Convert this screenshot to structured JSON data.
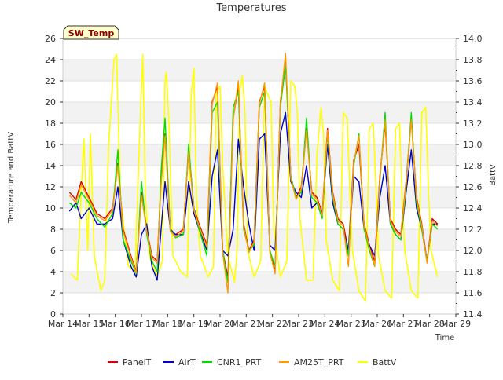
{
  "chart_data": {
    "type": "line",
    "title": "Temperatures",
    "badge": "SW_Temp",
    "xlabel": "Time",
    "ylabel_left": "Temperature and BattV",
    "ylabel_right": "BattV",
    "xlim": [
      0,
      15
    ],
    "ylim_left": [
      0,
      26
    ],
    "ylim_right": [
      11.4,
      14.0
    ],
    "x_ticks": [
      0,
      1,
      2,
      3,
      4,
      5,
      6,
      7,
      8,
      9,
      10,
      11,
      12,
      13,
      14,
      15
    ],
    "x_tick_labels": [
      "Mar 14",
      "Mar 15",
      "Mar 16",
      "Mar 17",
      "Mar 18",
      "Mar 19",
      "Mar 20",
      "Mar 21",
      "Mar 22",
      "Mar 23",
      "Mar 24",
      "Mar 25",
      "Mar 26",
      "Mar 27",
      "Mar 28",
      "Mar 29"
    ],
    "y_ticks_left": [
      0,
      2,
      4,
      6,
      8,
      10,
      12,
      14,
      16,
      18,
      20,
      22,
      24,
      26
    ],
    "y_ticks_right": [
      "11.4",
      "11.6",
      "11.8",
      "12.0",
      "12.2",
      "12.4",
      "12.6",
      "12.8",
      "13.0",
      "13.2",
      "13.4",
      "13.6",
      "13.8",
      "14.0"
    ],
    "grid": "horizontal bands",
    "legend_position": "bottom",
    "series": [
      {
        "name": "PanelT",
        "color": "#dd0000",
        "axis": "left",
        "x": [
          0.25,
          0.5,
          0.7,
          1.0,
          1.3,
          1.6,
          1.9,
          2.1,
          2.3,
          2.6,
          2.8,
          3.0,
          3.2,
          3.4,
          3.6,
          3.75,
          3.9,
          4.1,
          4.3,
          4.6,
          4.8,
          5.0,
          5.2,
          5.5,
          5.7,
          5.9,
          6.1,
          6.3,
          6.5,
          6.7,
          6.9,
          7.1,
          7.3,
          7.5,
          7.7,
          7.9,
          8.1,
          8.3,
          8.5,
          8.7,
          8.9,
          9.1,
          9.3,
          9.5,
          9.7,
          9.9,
          10.1,
          10.3,
          10.5,
          10.7,
          10.9,
          11.1,
          11.3,
          11.5,
          11.7,
          11.9,
          12.1,
          12.3,
          12.5,
          12.7,
          12.9,
          13.1,
          13.3,
          13.5,
          13.7,
          13.9,
          14.1,
          14.3
        ],
        "values": [
          11.5,
          10.8,
          12.5,
          11.0,
          9.5,
          9.0,
          10.0,
          14.2,
          8.0,
          5.5,
          4.0,
          11.5,
          8.0,
          5.5,
          5.0,
          12.5,
          17.0,
          8.0,
          7.5,
          8.0,
          15.5,
          10.0,
          8.5,
          6.5,
          20.0,
          21.5,
          6.0,
          3.5,
          18.5,
          21.5,
          8.5,
          6.0,
          7.0,
          20.0,
          21.5,
          6.0,
          4.0,
          20.0,
          24.0,
          13.0,
          11.0,
          12.0,
          17.5,
          11.5,
          11.0,
          9.5,
          17.5,
          11.5,
          9.0,
          8.5,
          6.0,
          14.5,
          16.0,
          8.5,
          6.5,
          5.0,
          13.0,
          18.0,
          9.0,
          8.0,
          7.5,
          12.5,
          18.5,
          11.0,
          8.5,
          5.0,
          9.0,
          8.5
        ]
      },
      {
        "name": "AirT",
        "color": "#0000cc",
        "axis": "left",
        "x": [
          0.25,
          0.5,
          0.7,
          1.0,
          1.3,
          1.6,
          1.9,
          2.1,
          2.3,
          2.6,
          2.8,
          3.0,
          3.2,
          3.4,
          3.6,
          3.75,
          3.9,
          4.1,
          4.3,
          4.6,
          4.8,
          5.0,
          5.2,
          5.5,
          5.7,
          5.9,
          6.1,
          6.3,
          6.5,
          6.7,
          6.9,
          7.1,
          7.3,
          7.5,
          7.7,
          7.9,
          8.1,
          8.3,
          8.5,
          8.7,
          8.9,
          9.1,
          9.3,
          9.5,
          9.7,
          9.9,
          10.1,
          10.3,
          10.5,
          10.7,
          10.9,
          11.1,
          11.3,
          11.5,
          11.7,
          11.9,
          12.1,
          12.3,
          12.5,
          12.7,
          12.9,
          13.1,
          13.3,
          13.5,
          13.7,
          13.9,
          14.1,
          14.3
        ],
        "values": [
          9.7,
          10.5,
          9.0,
          10.0,
          8.5,
          8.5,
          9.0,
          12.0,
          7.0,
          4.5,
          3.5,
          7.5,
          8.5,
          4.5,
          3.2,
          8.0,
          12.5,
          8.0,
          7.5,
          7.5,
          12.5,
          9.5,
          8.0,
          6.0,
          13.0,
          15.5,
          6.0,
          5.5,
          8.0,
          16.5,
          12.0,
          8.5,
          6.0,
          16.5,
          17.0,
          6.5,
          6.0,
          17.0,
          19.0,
          12.5,
          11.5,
          11.0,
          14.0,
          10.0,
          10.5,
          9.5,
          16.0,
          10.5,
          8.5,
          8.0,
          6.0,
          13.0,
          12.5,
          8.0,
          6.5,
          5.5,
          11.0,
          14.0,
          8.5,
          7.5,
          7.0,
          11.5,
          15.5,
          10.0,
          8.0,
          5.0,
          8.5,
          8.5
        ]
      },
      {
        "name": "CNR1_PRT",
        "color": "#00dd00",
        "axis": "left",
        "x": [
          0.25,
          0.5,
          0.7,
          1.0,
          1.3,
          1.6,
          1.9,
          2.1,
          2.3,
          2.6,
          2.8,
          3.0,
          3.2,
          3.4,
          3.6,
          3.75,
          3.9,
          4.1,
          4.3,
          4.6,
          4.8,
          5.0,
          5.2,
          5.5,
          5.7,
          5.9,
          6.1,
          6.3,
          6.5,
          6.7,
          6.9,
          7.1,
          7.3,
          7.5,
          7.7,
          7.9,
          8.1,
          8.3,
          8.5,
          8.7,
          8.9,
          9.1,
          9.3,
          9.5,
          9.7,
          9.9,
          10.1,
          10.3,
          10.5,
          10.7,
          10.9,
          11.1,
          11.3,
          11.5,
          11.7,
          11.9,
          12.1,
          12.3,
          12.5,
          12.7,
          12.9,
          13.1,
          13.3,
          13.5,
          13.7,
          13.9,
          14.1,
          14.3
        ],
        "values": [
          10.5,
          10.0,
          11.5,
          10.5,
          9.0,
          8.2,
          9.5,
          15.5,
          7.0,
          5.0,
          3.8,
          12.5,
          7.5,
          5.0,
          4.0,
          13.5,
          18.5,
          8.0,
          7.2,
          7.5,
          16.0,
          10.0,
          8.0,
          5.5,
          19.0,
          20.0,
          6.0,
          3.0,
          19.5,
          21.0,
          8.0,
          6.0,
          6.5,
          19.5,
          21.0,
          6.0,
          4.5,
          19.5,
          23.5,
          13.0,
          11.0,
          11.5,
          18.5,
          11.0,
          10.5,
          9.0,
          17.0,
          11.0,
          8.5,
          8.0,
          5.5,
          14.0,
          17.0,
          8.0,
          6.0,
          4.5,
          12.5,
          19.0,
          8.5,
          7.5,
          7.0,
          12.0,
          19.0,
          10.5,
          8.0,
          5.0,
          8.5,
          8.0
        ]
      },
      {
        "name": "AM25T_PRT",
        "color": "#ff9900",
        "axis": "left",
        "x": [
          0.25,
          0.5,
          0.7,
          1.0,
          1.3,
          1.6,
          1.9,
          2.1,
          2.3,
          2.6,
          2.8,
          3.0,
          3.2,
          3.4,
          3.6,
          3.75,
          3.9,
          4.1,
          4.3,
          4.6,
          4.8,
          5.0,
          5.2,
          5.5,
          5.7,
          5.9,
          6.1,
          6.3,
          6.5,
          6.7,
          6.9,
          7.1,
          7.3,
          7.5,
          7.7,
          7.9,
          8.1,
          8.3,
          8.5,
          8.7,
          8.9,
          9.1,
          9.3,
          9.5,
          9.7,
          9.9,
          10.1,
          10.3,
          10.5,
          10.7,
          10.9,
          11.1,
          11.3,
          11.5,
          11.7,
          11.9,
          12.1,
          12.3,
          12.5,
          12.7,
          12.9,
          13.1,
          13.3,
          13.5,
          13.7,
          13.9,
          14.1,
          14.3
        ],
        "values": [
          11.2,
          10.5,
          12.2,
          10.8,
          9.3,
          8.8,
          9.8,
          14.0,
          7.8,
          5.3,
          3.9,
          11.2,
          7.8,
          5.3,
          4.8,
          12.2,
          16.8,
          7.8,
          7.3,
          7.8,
          15.3,
          9.8,
          8.3,
          6.3,
          19.8,
          21.8,
          5.8,
          2.0,
          18.3,
          22.0,
          8.3,
          5.8,
          6.8,
          19.8,
          21.8,
          5.8,
          3.8,
          19.8,
          24.6,
          12.8,
          10.8,
          11.8,
          17.3,
          11.3,
          10.8,
          9.3,
          17.3,
          11.3,
          8.8,
          8.3,
          4.5,
          14.3,
          16.8,
          8.3,
          6.3,
          4.5,
          12.8,
          18.3,
          8.8,
          7.8,
          7.3,
          12.3,
          18.3,
          10.8,
          8.3,
          4.8,
          8.8,
          8.3
        ]
      },
      {
        "name": "BattV",
        "color": "#ffff00",
        "axis": "right",
        "x": [
          0.3,
          0.55,
          0.7,
          0.8,
          0.95,
          1.05,
          1.2,
          1.45,
          1.6,
          1.75,
          1.95,
          2.05,
          2.2,
          2.5,
          2.75,
          2.95,
          3.05,
          3.15,
          3.3,
          3.6,
          3.8,
          3.9,
          3.95,
          4.05,
          4.2,
          4.5,
          4.75,
          4.9,
          5.0,
          5.1,
          5.25,
          5.55,
          5.75,
          5.85,
          6.0,
          6.1,
          6.3,
          6.55,
          6.65,
          6.75,
          6.85,
          6.95,
          7.05,
          7.3,
          7.55,
          7.7,
          7.85,
          7.95,
          8.05,
          8.3,
          8.55,
          8.7,
          8.85,
          8.95,
          9.05,
          9.3,
          9.55,
          9.7,
          9.85,
          9.95,
          10.05,
          10.3,
          10.55,
          10.7,
          10.85,
          10.95,
          11.05,
          11.3,
          11.55,
          11.7,
          11.85,
          11.95,
          12.05,
          12.3,
          12.55,
          12.7,
          12.85,
          12.95,
          13.05,
          13.3,
          13.55,
          13.7,
          13.85,
          13.95,
          14.05,
          14.3
        ],
        "values": [
          11.78,
          11.72,
          12.55,
          13.05,
          12.0,
          13.1,
          11.95,
          11.62,
          11.72,
          13.0,
          13.8,
          13.85,
          12.5,
          11.85,
          11.8,
          13.2,
          13.85,
          12.5,
          11.95,
          11.75,
          11.9,
          13.6,
          13.68,
          13.2,
          11.95,
          11.8,
          11.75,
          13.48,
          13.72,
          12.5,
          11.95,
          11.75,
          11.85,
          13.48,
          13.55,
          12.8,
          11.95,
          11.7,
          12.0,
          13.5,
          13.65,
          13.3,
          12.0,
          11.75,
          11.9,
          13.55,
          13.45,
          13.4,
          12.2,
          11.75,
          11.9,
          13.6,
          13.55,
          13.3,
          12.3,
          11.72,
          11.72,
          12.9,
          13.35,
          13.1,
          12.1,
          11.72,
          11.62,
          13.3,
          13.25,
          12.6,
          12.0,
          11.62,
          11.52,
          13.15,
          13.2,
          12.6,
          11.95,
          11.62,
          11.55,
          13.15,
          13.2,
          12.5,
          12.0,
          11.62,
          11.55,
          13.3,
          13.35,
          12.6,
          12.0,
          11.75
        ]
      }
    ]
  }
}
